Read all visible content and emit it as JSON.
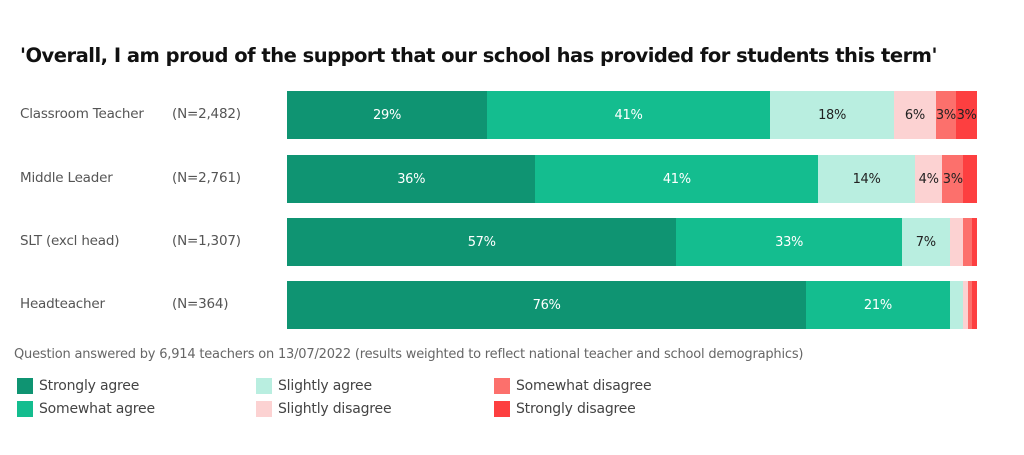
{
  "title": "'Overall, I am proud of the support that our school has provided for students this term'",
  "footnote": "Question answered by 6,914 teachers on 13/07/2022 (results weighted to reflect national teacher and school demographics)",
  "colors": {
    "strongly_agree": "#0f9472",
    "somewhat_agree": "#14bd8f",
    "slightly_agree": "#b9eee0",
    "slightly_disagree": "#fcd2d2",
    "somewhat_disagree": "#fc706c",
    "strongly_disagree": "#fd3f40"
  },
  "legend": [
    {
      "label": "Strongly agree",
      "color": "#0f9472"
    },
    {
      "label": "Somewhat agree",
      "color": "#14bd8f"
    },
    {
      "label": "Slightly agree",
      "color": "#b9eee0"
    },
    {
      "label": "Slightly disagree",
      "color": "#fcd2d2"
    },
    {
      "label": "Somewhat disagree",
      "color": "#fc706c"
    },
    {
      "label": "Strongly disagree",
      "color": "#fd3f40"
    }
  ],
  "rows": [
    {
      "label": "Classroom Teacher",
      "n": "(N=2,482)",
      "labels": [
        "29%",
        "41%",
        "18%",
        "6%",
        "3%",
        "3%"
      ]
    },
    {
      "label": "Middle Leader",
      "n": "(N=2,761)",
      "labels": [
        "36%",
        "41%",
        "14%",
        "4%",
        "3%",
        ""
      ]
    },
    {
      "label": "SLT (excl head)",
      "n": "(N=1,307)",
      "labels": [
        "57%",
        "33%",
        "7%",
        "",
        "",
        ""
      ]
    },
    {
      "label": "Headteacher",
      "n": "(N=364)",
      "labels": [
        "76%",
        "21%",
        "",
        "",
        "",
        ""
      ]
    }
  ],
  "chart_data": {
    "type": "bar",
    "orientation": "horizontal",
    "stacked": true,
    "normalized": true,
    "title": "'Overall, I am proud of the support that our school has provided for students this term'",
    "categories": [
      "Classroom Teacher (N=2,482)",
      "Middle Leader (N=2,761)",
      "SLT (excl head) (N=1,307)",
      "Headteacher (N=364)"
    ],
    "series": [
      {
        "name": "Strongly agree",
        "color": "#0f9472",
        "values": [
          29,
          36,
          57,
          76
        ]
      },
      {
        "name": "Somewhat agree",
        "color": "#14bd8f",
        "values": [
          41,
          41,
          33,
          21
        ]
      },
      {
        "name": "Slightly agree",
        "color": "#b9eee0",
        "values": [
          18,
          14,
          7,
          2
        ]
      },
      {
        "name": "Slightly disagree",
        "color": "#fcd2d2",
        "values": [
          6,
          4,
          2,
          0.7
        ]
      },
      {
        "name": "Somewhat disagree",
        "color": "#fc706c",
        "values": [
          3,
          3,
          1.3,
          0.5
        ]
      },
      {
        "name": "Strongly disagree",
        "color": "#fd3f40",
        "values": [
          3,
          2,
          0.7,
          0.8
        ]
      }
    ],
    "xlabel": "",
    "ylabel": "",
    "xlim": [
      0,
      100
    ],
    "grid": false,
    "legend_position": "bottom",
    "annotations": [
      "Question answered by 6,914 teachers on 13/07/2022 (results weighted to reflect national teacher and school demographics)"
    ]
  }
}
